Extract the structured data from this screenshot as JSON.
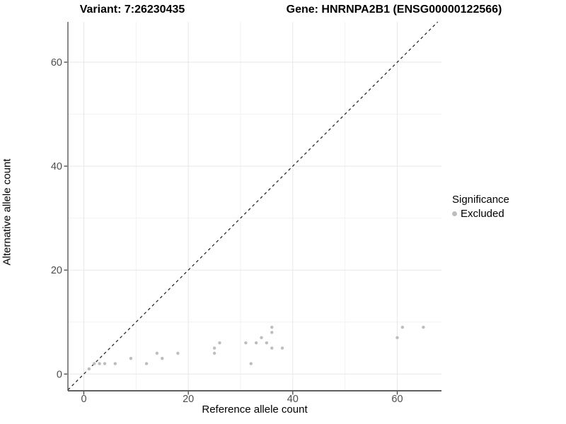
{
  "titles": {
    "variant": "Variant: 7:26230435",
    "gene": "Gene: HNRNPA2B1 (ENSG00000122566)"
  },
  "legend": {
    "title": "Significance",
    "items": [
      {
        "label": "Excluded",
        "color": "#bdbdbd"
      }
    ]
  },
  "colors": {
    "background": "#ffffff",
    "point": "#bdbdbd",
    "grid_major": "#e7e7e7",
    "grid_minor": "#f2f2f2",
    "axis_line": "#4a4a4a",
    "tick_mark": "#333333",
    "tick_label": "#4d4d4d",
    "identity_line": "#1a1a1a"
  },
  "chart_data": {
    "type": "scatter",
    "title": "Variant: 7:26230435   Gene: HNRNPA2B1 (ENSG00000122566)",
    "xlabel": "Reference allele count",
    "ylabel": "Alternative allele count",
    "xlim": [
      -3.25,
      68.25
    ],
    "ylim": [
      -3.25,
      68.25
    ],
    "x_ticks": [
      0,
      20,
      40,
      60
    ],
    "y_ticks": [
      0,
      20,
      40,
      60
    ],
    "x_minor_ticks": [
      10,
      30,
      50
    ],
    "y_minor_ticks": [
      10,
      30,
      50
    ],
    "grid": true,
    "legend_position": "right",
    "legend_title": "Significance",
    "series": [
      {
        "name": "Excluded",
        "color": "#bdbdbd",
        "points": [
          [
            1,
            1
          ],
          [
            2,
            2
          ],
          [
            3,
            2
          ],
          [
            4,
            2
          ],
          [
            6,
            2
          ],
          [
            9,
            3
          ],
          [
            12,
            2
          ],
          [
            14,
            4
          ],
          [
            15,
            3
          ],
          [
            18,
            4
          ],
          [
            25,
            4
          ],
          [
            25,
            5
          ],
          [
            26,
            6
          ],
          [
            31,
            6
          ],
          [
            32,
            2
          ],
          [
            33,
            6
          ],
          [
            34,
            7
          ],
          [
            35,
            6
          ],
          [
            36,
            5
          ],
          [
            36,
            8
          ],
          [
            36,
            9
          ],
          [
            38,
            5
          ],
          [
            60,
            7
          ],
          [
            61,
            9
          ],
          [
            65,
            9
          ]
        ]
      }
    ],
    "reference_line": {
      "type": "identity",
      "equation": "y = x",
      "style": "dashed",
      "color": "#1a1a1a"
    }
  }
}
